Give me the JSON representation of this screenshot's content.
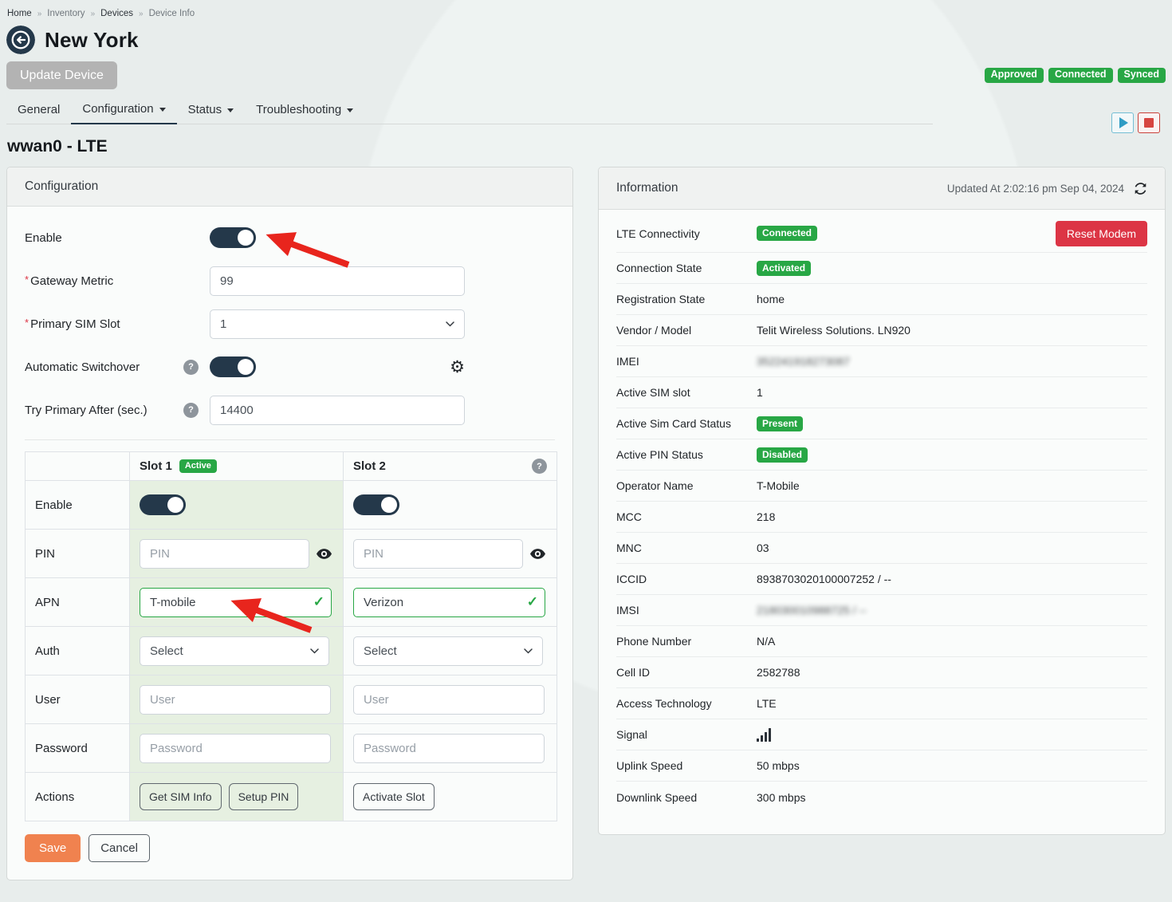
{
  "breadcrumb": {
    "separator": "»",
    "items": [
      {
        "label": "Home",
        "muted": false
      },
      {
        "label": "Inventory",
        "muted": true
      },
      {
        "label": "Devices",
        "muted": false
      },
      {
        "label": "Device Info",
        "muted": true
      }
    ]
  },
  "header": {
    "title": "New York",
    "update_button": "Update Device",
    "badges": [
      "Approved",
      "Connected",
      "Synced"
    ]
  },
  "tabs": [
    {
      "label": "General",
      "caret": false,
      "active": false
    },
    {
      "label": "Configuration",
      "caret": true,
      "active": true
    },
    {
      "label": "Status",
      "caret": true,
      "active": false
    },
    {
      "label": "Troubleshooting",
      "caret": true,
      "active": false
    }
  ],
  "section_title": "wwan0 - LTE",
  "config": {
    "panel_title": "Configuration",
    "fields": {
      "enable_label": "Enable",
      "gateway_metric_label": "Gateway Metric",
      "gateway_metric_value": "99",
      "primary_sim_slot_label": "Primary SIM Slot",
      "primary_sim_slot_value": "1",
      "automatic_switchover_label": "Automatic Switchover",
      "try_primary_label": "Try Primary After (sec.)",
      "try_primary_value": "14400"
    },
    "table": {
      "slot1_header": "Slot 1",
      "slot1_badge": "Active",
      "slot2_header": "Slot 2",
      "row_labels": [
        "Enable",
        "PIN",
        "APN",
        "Auth",
        "User",
        "Password",
        "Actions"
      ],
      "pin_placeholder": "PIN",
      "slot1_apn": "T-mobile",
      "slot2_apn": "Verizon",
      "auth_value": "Select",
      "user_placeholder": "User",
      "password_placeholder": "Password",
      "slot1_actions": [
        "Get SIM Info",
        "Setup PIN"
      ],
      "slot2_actions": [
        "Activate Slot"
      ]
    },
    "save_label": "Save",
    "cancel_label": "Cancel"
  },
  "information": {
    "panel_title": "Information",
    "updated_at": "Updated At 2:02:16 pm Sep 04, 2024",
    "rows": [
      {
        "label": "LTE Connectivity",
        "badge": "Connected",
        "action": "Reset Modem"
      },
      {
        "label": "Connection State",
        "badge": "Activated"
      },
      {
        "label": "Registration State",
        "value": "home"
      },
      {
        "label": "Vendor / Model",
        "value": "Telit Wireless Solutions. LN920"
      },
      {
        "label": "IMEI",
        "value": "352241918273087",
        "blurred": true
      },
      {
        "label": "Active SIM slot",
        "value": "1"
      },
      {
        "label": "Active Sim Card Status",
        "badge": "Present"
      },
      {
        "label": "Active PIN Status",
        "badge": "Disabled"
      },
      {
        "label": "Operator Name",
        "value": "T-Mobile"
      },
      {
        "label": "MCC",
        "value": "218"
      },
      {
        "label": "MNC",
        "value": "03"
      },
      {
        "label": "ICCID",
        "value": "8938703020100007252 / --"
      },
      {
        "label": "IMSI",
        "value": "218030010988725 / --",
        "blurred": true
      },
      {
        "label": "Phone Number",
        "value": "N/A"
      },
      {
        "label": "Cell ID",
        "value": "2582788"
      },
      {
        "label": "Access Technology",
        "value": "LTE"
      },
      {
        "label": "Signal",
        "icon": "signal-bars"
      },
      {
        "label": "Uplink Speed",
        "value": "50 mbps"
      },
      {
        "label": "Downlink Speed",
        "value": "300 mbps"
      }
    ]
  },
  "colors": {
    "navy": "#24384a",
    "green": "#28a745",
    "red": "#dc3545",
    "orange": "#f0824f",
    "arrow_red": "#e8251d",
    "play_blue": "#2f9cc4",
    "slot1_bg": "#e6f0e1"
  }
}
